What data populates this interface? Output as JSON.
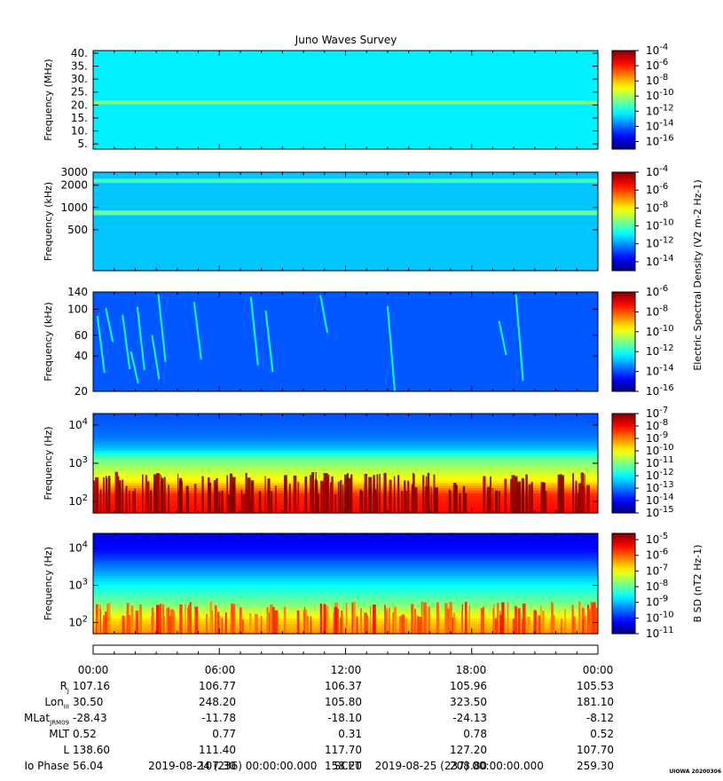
{
  "title": "Juno Waves Survey",
  "stamp": "UIOWA 20200306",
  "footer": {
    "start": "2019-08-24 (236) 00:00:00.000",
    "scet": "SCET",
    "end": "2019-08-25 (237) 00:00:00.000"
  },
  "ephemeris": {
    "times": [
      "00:00",
      "06:00",
      "12:00",
      "18:00",
      "00:00"
    ],
    "rows": [
      {
        "label": "R",
        "sub": "J",
        "values": [
          "107.16",
          "106.77",
          "106.37",
          "105.96",
          "105.53"
        ]
      },
      {
        "label": "Lon",
        "sub": "III",
        "values": [
          "30.50",
          "248.20",
          "105.80",
          "323.50",
          "181.10"
        ]
      },
      {
        "label": "MLat",
        "sub": "JRM09",
        "values": [
          "-28.43",
          "-11.78",
          "-18.10",
          "-24.13",
          "-8.12"
        ]
      },
      {
        "label": "MLT",
        "sub": "",
        "values": [
          "0.52",
          "0.77",
          "0.31",
          "0.78",
          "0.52"
        ]
      },
      {
        "label": "L",
        "sub": "",
        "values": [
          "138.60",
          "111.40",
          "117.70",
          "127.20",
          "107.70"
        ]
      },
      {
        "label": "Io Phase",
        "sub": "",
        "values": [
          "56.04",
          "107.30",
          "158.20",
          "208.80",
          "259.30"
        ]
      }
    ]
  },
  "chart_data": [
    {
      "type": "heatmap",
      "name": "HF high",
      "ylabel": "Frequency (MHz)",
      "yticks": [
        "40.",
        "35.",
        "30.",
        "25.",
        "20.",
        "15.",
        "10.",
        "5."
      ],
      "ylim": [
        3,
        41
      ],
      "yscale": "linear",
      "cbar_ticks": [
        "10-4",
        "10-6",
        "10-8",
        "10-10",
        "10-12",
        "10-14",
        "10-16"
      ],
      "cbar_range": [
        -17,
        -4
      ],
      "background": -12.3,
      "bands": [
        {
          "freq": 21,
          "width": 1.3,
          "level": -10.5
        }
      ],
      "colorbar_label": ""
    },
    {
      "type": "heatmap",
      "name": "HF low",
      "ylabel": "Frequency (kHz)",
      "yticks": [
        "3000",
        "2000",
        "1000",
        "500"
      ],
      "ylim": [
        140,
        3000
      ],
      "yscale": "log",
      "cbar_ticks": [
        "10-4",
        "10-6",
        "10-8",
        "10-10",
        "10-12",
        "10-14"
      ],
      "cbar_range": [
        -15,
        -4
      ],
      "background": -11.5,
      "bands": [
        {
          "freq": 2300,
          "width": 300,
          "level": -10.2
        },
        {
          "freq": 850,
          "width": 120,
          "level": -9.7
        }
      ],
      "colorbar_label": "Electric Spectral Density (V2 m-2 Hz-1)"
    },
    {
      "type": "heatmap",
      "name": "LF",
      "ylabel": "Frequency (kHz)",
      "yticks": [
        "140",
        "100",
        "60",
        "40",
        "20"
      ],
      "ylim": [
        20,
        140
      ],
      "yscale": "log",
      "cbar_ticks": [
        "10-6",
        "10-8",
        "10-10",
        "10-12",
        "10-14",
        "10-16"
      ],
      "cbar_range": [
        -16,
        -6
      ],
      "background": -13.9,
      "bursts_hours": [
        0.2,
        0.6,
        1.4,
        1.8,
        2.1,
        2.8,
        3.1,
        4.8,
        7.5,
        8.2,
        10.8,
        14.0,
        19.3,
        20.1
      ],
      "burst_level": -12.2,
      "colorbar_label": ""
    },
    {
      "type": "heatmap",
      "name": "VLF E",
      "ylabel": "Frequency (Hz)",
      "yticks": [
        "104",
        "103",
        "102"
      ],
      "ylim": [
        50,
        20000
      ],
      "yscale": "log",
      "cbar_ticks": [
        "10-7",
        "10-8",
        "10-9",
        "10-10",
        "10-11",
        "10-12",
        "10-13",
        "10-14",
        "10-15"
      ],
      "cbar_range": [
        -15,
        -7
      ],
      "profile": [
        [
          50,
          -8.0
        ],
        [
          150,
          -8.3
        ],
        [
          320,
          -9.8
        ],
        [
          700,
          -10.6
        ],
        [
          1400,
          -11.3
        ],
        [
          2200,
          -12.4
        ],
        [
          5000,
          -13.1
        ],
        [
          20000,
          -13.4
        ]
      ],
      "colorbar_label": ""
    },
    {
      "type": "heatmap",
      "name": "VLF B",
      "ylabel": "Frequency (Hz)",
      "yticks": [
        "104",
        "103",
        "102"
      ],
      "ylim": [
        50,
        25000
      ],
      "yscale": "log",
      "cbar_ticks": [
        "10-5",
        "10-6",
        "10-7",
        "10-8",
        "10-9",
        "10-10",
        "10-11"
      ],
      "cbar_range": [
        -11,
        -4.6
      ],
      "profile": [
        [
          50,
          -6.3
        ],
        [
          120,
          -6.8
        ],
        [
          300,
          -7.8
        ],
        [
          1000,
          -8.6
        ],
        [
          3000,
          -9.4
        ],
        [
          8000,
          -10.1
        ],
        [
          25000,
          -10.4
        ]
      ],
      "colorbar_label": "B SD (nT2 Hz-1)"
    }
  ]
}
